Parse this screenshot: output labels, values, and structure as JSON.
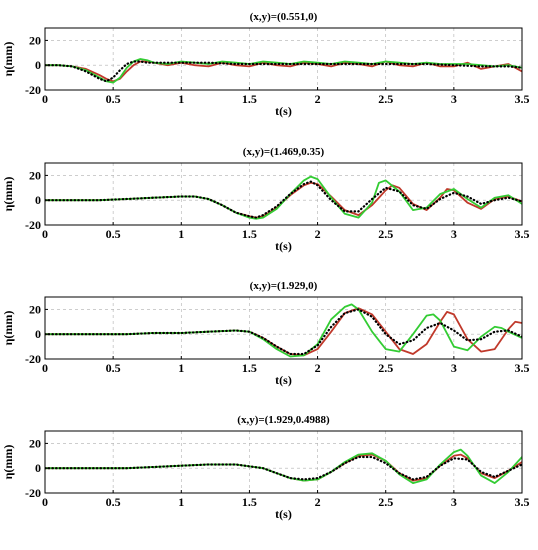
{
  "chart_data": [
    {
      "type": "line",
      "title": "(x,y)=(0.551,0)",
      "xlabel": "t(s)",
      "ylabel": "η(mm)",
      "xlim": [
        0,
        3.5
      ],
      "ylim": [
        -20,
        30
      ],
      "xticks": [
        "0",
        "0.5",
        "1",
        "1.5",
        "2",
        "2.5",
        "3",
        "3.5"
      ],
      "yticks": [
        "20",
        "0",
        "-20"
      ],
      "grid": true,
      "series": [
        {
          "color": "#c0392b",
          "style": "solid",
          "x": [
            0,
            0.1,
            0.2,
            0.3,
            0.4,
            0.45,
            0.5,
            0.55,
            0.6,
            0.65,
            0.7,
            0.75,
            0.8,
            0.9,
            1.0,
            1.1,
            1.2,
            1.3,
            1.4,
            1.5,
            1.6,
            1.7,
            1.8,
            1.9,
            2.0,
            2.1,
            2.2,
            2.3,
            2.4,
            2.5,
            2.6,
            2.7,
            2.8,
            2.9,
            3.0,
            3.1,
            3.2,
            3.3,
            3.4,
            3.5
          ],
          "y": [
            0,
            0,
            -1,
            -3,
            -8,
            -11,
            -13,
            -11,
            -5,
            0,
            3,
            3,
            2,
            0,
            2,
            0,
            -1,
            2,
            0,
            -1,
            2,
            0,
            -1,
            2,
            1,
            -1,
            2,
            1,
            -1,
            3,
            0,
            -1,
            2,
            -1,
            -1,
            2,
            -3,
            -1,
            1,
            -5
          ]
        },
        {
          "color": "#33cc33",
          "style": "solid",
          "x": [
            0,
            0.1,
            0.2,
            0.3,
            0.4,
            0.45,
            0.5,
            0.55,
            0.6,
            0.65,
            0.7,
            0.75,
            0.8,
            0.9,
            1.0,
            1.1,
            1.2,
            1.3,
            1.4,
            1.5,
            1.6,
            1.7,
            1.8,
            1.9,
            2.0,
            2.1,
            2.2,
            2.3,
            2.4,
            2.5,
            2.6,
            2.7,
            2.8,
            2.9,
            3.0,
            3.1,
            3.2,
            3.3,
            3.4,
            3.5
          ],
          "y": [
            0,
            0,
            -1,
            -4,
            -10,
            -13,
            -14,
            -10,
            -2,
            3,
            5,
            4,
            2,
            1,
            3,
            2,
            1,
            3,
            2,
            1,
            3,
            2,
            1,
            3,
            2,
            1,
            3,
            2,
            1,
            3,
            2,
            1,
            2,
            1,
            1,
            1,
            0,
            -1,
            0,
            -2
          ]
        },
        {
          "color": "#000000",
          "style": "dotted",
          "x": [
            0,
            0.1,
            0.2,
            0.3,
            0.4,
            0.45,
            0.5,
            0.55,
            0.6,
            0.65,
            0.7,
            0.75,
            0.8,
            0.9,
            1.0,
            1.2,
            1.4,
            1.6,
            1.8,
            2.0,
            2.2,
            2.4,
            2.6,
            2.8,
            3.0,
            3.2,
            3.4,
            3.5
          ],
          "y": [
            0,
            0,
            -1,
            -5,
            -11,
            -13,
            -10,
            -4,
            1,
            3,
            3,
            2,
            2,
            2,
            2,
            2,
            1,
            1,
            1,
            1,
            1,
            1,
            1,
            1,
            0,
            -1,
            -1,
            -2
          ]
        }
      ]
    },
    {
      "type": "line",
      "title": "(x,y)=(1.469,0.35)",
      "xlabel": "t(s)",
      "ylabel": "η(mm)",
      "xlim": [
        0,
        3.5
      ],
      "ylim": [
        -20,
        30
      ],
      "xticks": [
        "0",
        "0.5",
        "1",
        "1.5",
        "2",
        "2.5",
        "3",
        "3.5"
      ],
      "yticks": [
        "20",
        "0",
        "-20"
      ],
      "grid": true,
      "series": [
        {
          "color": "#c0392b",
          "style": "solid",
          "x": [
            0,
            0.2,
            0.4,
            0.6,
            0.8,
            1.0,
            1.1,
            1.2,
            1.3,
            1.4,
            1.5,
            1.55,
            1.6,
            1.7,
            1.8,
            1.9,
            1.95,
            2.0,
            2.1,
            2.2,
            2.3,
            2.4,
            2.5,
            2.55,
            2.6,
            2.7,
            2.8,
            2.9,
            2.95,
            3.0,
            3.1,
            3.2,
            3.3,
            3.4,
            3.5
          ],
          "y": [
            0,
            0,
            0,
            1,
            2,
            3,
            3,
            1,
            -4,
            -10,
            -13,
            -14,
            -13,
            -6,
            4,
            12,
            14,
            13,
            3,
            -8,
            -12,
            -4,
            8,
            12,
            10,
            -3,
            -8,
            2,
            9,
            8,
            -2,
            -7,
            1,
            3,
            -1
          ]
        },
        {
          "color": "#33cc33",
          "style": "solid",
          "x": [
            0,
            0.2,
            0.4,
            0.6,
            0.8,
            1.0,
            1.1,
            1.2,
            1.3,
            1.4,
            1.5,
            1.55,
            1.6,
            1.7,
            1.8,
            1.9,
            1.95,
            2.0,
            2.1,
            2.2,
            2.3,
            2.4,
            2.45,
            2.5,
            2.6,
            2.7,
            2.8,
            2.9,
            3.0,
            3.1,
            3.2,
            3.3,
            3.4,
            3.5
          ],
          "y": [
            0,
            0,
            0,
            1,
            2,
            3,
            3,
            1,
            -4,
            -10,
            -14,
            -15,
            -14,
            -7,
            5,
            16,
            19,
            17,
            2,
            -11,
            -14,
            -2,
            14,
            16,
            7,
            -8,
            -6,
            5,
            9,
            1,
            -6,
            2,
            4,
            -3
          ]
        },
        {
          "color": "#000000",
          "style": "dotted",
          "x": [
            0,
            0.2,
            0.4,
            0.6,
            0.8,
            1.0,
            1.1,
            1.2,
            1.3,
            1.4,
            1.5,
            1.55,
            1.6,
            1.7,
            1.8,
            1.9,
            1.95,
            2.0,
            2.1,
            2.2,
            2.3,
            2.4,
            2.5,
            2.6,
            2.7,
            2.8,
            2.9,
            3.0,
            3.1,
            3.2,
            3.3,
            3.4,
            3.5
          ],
          "y": [
            0,
            0,
            0,
            1,
            2,
            3,
            3,
            1,
            -4,
            -10,
            -13,
            -14,
            -12,
            -5,
            5,
            13,
            15,
            12,
            0,
            -9,
            -9,
            1,
            10,
            7,
            -4,
            -7,
            1,
            6,
            3,
            -3,
            0,
            2,
            -1
          ]
        }
      ]
    },
    {
      "type": "line",
      "title": "(x,y)=(1.929,0)",
      "xlabel": "t(s)",
      "ylabel": "η(mm)",
      "xlim": [
        0,
        3.5
      ],
      "ylim": [
        -20,
        30
      ],
      "xticks": [
        "0",
        "0.5",
        "1",
        "1.5",
        "2",
        "2.5",
        "3",
        "3.5"
      ],
      "yticks": [
        "20",
        "0",
        "-20"
      ],
      "grid": true,
      "series": [
        {
          "color": "#c0392b",
          "style": "solid",
          "x": [
            0,
            0.2,
            0.4,
            0.6,
            0.8,
            1.0,
            1.2,
            1.4,
            1.5,
            1.6,
            1.7,
            1.8,
            1.9,
            2.0,
            2.1,
            2.2,
            2.3,
            2.4,
            2.5,
            2.6,
            2.7,
            2.8,
            2.9,
            2.95,
            3.0,
            3.1,
            3.2,
            3.3,
            3.4,
            3.45,
            3.5
          ],
          "y": [
            0,
            0,
            0,
            0,
            1,
            1,
            2,
            3,
            2,
            -3,
            -10,
            -16,
            -17,
            -12,
            2,
            17,
            21,
            16,
            2,
            -12,
            -16,
            -8,
            10,
            18,
            16,
            -4,
            -14,
            -12,
            4,
            10,
            9
          ]
        },
        {
          "color": "#33cc33",
          "style": "solid",
          "x": [
            0,
            0.2,
            0.4,
            0.6,
            0.8,
            1.0,
            1.2,
            1.4,
            1.5,
            1.6,
            1.7,
            1.8,
            1.9,
            2.0,
            2.1,
            2.2,
            2.25,
            2.3,
            2.4,
            2.5,
            2.6,
            2.7,
            2.8,
            2.85,
            2.9,
            3.0,
            3.1,
            3.2,
            3.3,
            3.35,
            3.4,
            3.5
          ],
          "y": [
            0,
            0,
            0,
            0,
            1,
            1,
            2,
            3,
            2,
            -4,
            -12,
            -18,
            -17,
            -8,
            12,
            22,
            24,
            20,
            2,
            -12,
            -14,
            0,
            15,
            16,
            11,
            -10,
            -13,
            -2,
            6,
            5,
            2,
            -3
          ]
        },
        {
          "color": "#000000",
          "style": "dotted",
          "x": [
            0,
            0.2,
            0.4,
            0.6,
            0.8,
            1.0,
            1.2,
            1.4,
            1.5,
            1.6,
            1.7,
            1.8,
            1.9,
            2.0,
            2.1,
            2.2,
            2.3,
            2.4,
            2.5,
            2.6,
            2.7,
            2.8,
            2.9,
            3.0,
            3.1,
            3.2,
            3.3,
            3.4,
            3.5
          ],
          "y": [
            0,
            0,
            0,
            0,
            1,
            1,
            2,
            3,
            2,
            -3,
            -10,
            -16,
            -16,
            -9,
            6,
            17,
            20,
            14,
            0,
            -8,
            -5,
            5,
            9,
            3,
            -5,
            -4,
            2,
            3,
            -2
          ]
        }
      ]
    },
    {
      "type": "line",
      "title": "(x,y)=(1.929,0.4988)",
      "xlabel": "t(s)",
      "ylabel": "η(mm)",
      "xlim": [
        0,
        3.5
      ],
      "ylim": [
        -20,
        30
      ],
      "xticks": [
        "0",
        "0.5",
        "1",
        "1.5",
        "2",
        "2.5",
        "3",
        "3.5"
      ],
      "yticks": [
        "20",
        "0",
        "-20"
      ],
      "grid": true,
      "series": [
        {
          "color": "#c0392b",
          "style": "solid",
          "x": [
            0,
            0.2,
            0.4,
            0.6,
            0.8,
            1.0,
            1.2,
            1.4,
            1.6,
            1.7,
            1.8,
            1.9,
            2.0,
            2.1,
            2.2,
            2.3,
            2.4,
            2.5,
            2.6,
            2.7,
            2.8,
            2.9,
            3.0,
            3.05,
            3.1,
            3.2,
            3.3,
            3.4,
            3.5
          ],
          "y": [
            0,
            0,
            0,
            0,
            1,
            2,
            3,
            3,
            0,
            -4,
            -8,
            -10,
            -9,
            -3,
            4,
            10,
            11,
            6,
            -4,
            -10,
            -8,
            2,
            10,
            11,
            8,
            -4,
            -8,
            -2,
            5
          ]
        },
        {
          "color": "#33cc33",
          "style": "solid",
          "x": [
            0,
            0.2,
            0.4,
            0.6,
            0.8,
            1.0,
            1.2,
            1.4,
            1.6,
            1.7,
            1.8,
            1.9,
            2.0,
            2.1,
            2.2,
            2.3,
            2.4,
            2.5,
            2.6,
            2.7,
            2.8,
            2.9,
            3.0,
            3.05,
            3.1,
            3.2,
            3.3,
            3.4,
            3.5
          ],
          "y": [
            0,
            0,
            0,
            0,
            1,
            2,
            3,
            3,
            0,
            -4,
            -8,
            -10,
            -9,
            -3,
            5,
            11,
            12,
            6,
            -5,
            -12,
            -9,
            3,
            13,
            15,
            10,
            -6,
            -12,
            -3,
            9
          ]
        },
        {
          "color": "#000000",
          "style": "dotted",
          "x": [
            0,
            0.2,
            0.4,
            0.6,
            0.8,
            1.0,
            1.2,
            1.4,
            1.6,
            1.7,
            1.8,
            1.9,
            2.0,
            2.1,
            2.2,
            2.3,
            2.4,
            2.5,
            2.6,
            2.7,
            2.8,
            2.9,
            3.0,
            3.1,
            3.2,
            3.3,
            3.4,
            3.5
          ],
          "y": [
            0,
            0,
            0,
            0,
            1,
            2,
            3,
            3,
            0,
            -4,
            -8,
            -9,
            -8,
            -3,
            4,
            9,
            9,
            4,
            -4,
            -9,
            -7,
            2,
            8,
            7,
            -3,
            -7,
            -2,
            3
          ]
        }
      ]
    }
  ]
}
